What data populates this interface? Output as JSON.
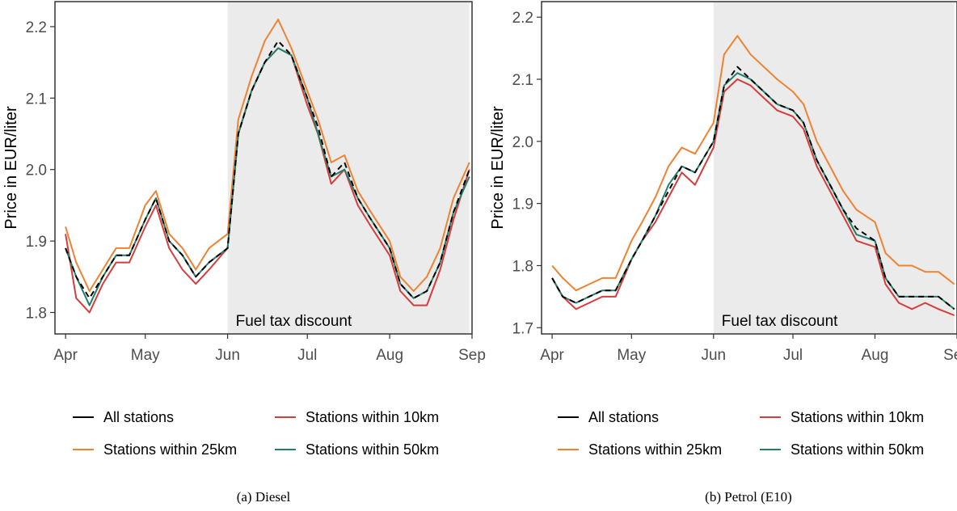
{
  "chart_data": [
    {
      "type": "line",
      "caption": "(a) Diesel",
      "title": "",
      "xlabel": "",
      "ylabel": "Price in EUR/liter",
      "x_ticks": [
        "Apr",
        "May",
        "Jun",
        "Jul",
        "Aug",
        "Sep"
      ],
      "x_tick_days": [
        0,
        30,
        61,
        91,
        122,
        153
      ],
      "xlim": [
        -4,
        153
      ],
      "ylim": [
        1.77,
        2.235
      ],
      "y_ticks": [
        1.8,
        1.9,
        2.0,
        2.1,
        2.2
      ],
      "y_tick_labels": [
        "1.8",
        "1.9",
        "2.0",
        "2.1",
        "2.2"
      ],
      "shaded_region": {
        "from_day": 61,
        "to_day": 152,
        "label": "Fuel tax discount",
        "color": "#ebebeb"
      },
      "legend": {
        "position": "bottom",
        "columns": 2
      },
      "x": [
        "2022-04-01",
        "2022-04-05",
        "2022-04-10",
        "2022-04-15",
        "2022-04-20",
        "2022-04-25",
        "2022-05-01",
        "2022-05-05",
        "2022-05-10",
        "2022-05-15",
        "2022-05-20",
        "2022-05-25",
        "2022-06-01",
        "2022-06-05",
        "2022-06-10",
        "2022-06-15",
        "2022-06-20",
        "2022-06-25",
        "2022-07-01",
        "2022-07-05",
        "2022-07-10",
        "2022-07-15",
        "2022-07-20",
        "2022-07-25",
        "2022-08-01",
        "2022-08-05",
        "2022-08-10",
        "2022-08-15",
        "2022-08-20",
        "2022-08-25",
        "2022-08-31"
      ],
      "series": [
        {
          "name": "All stations",
          "color": "#000000",
          "dash": true,
          "values": [
            1.89,
            1.85,
            1.82,
            1.85,
            1.88,
            1.88,
            1.93,
            1.96,
            1.9,
            1.88,
            1.85,
            1.87,
            1.89,
            2.05,
            2.11,
            2.15,
            2.18,
            2.16,
            2.1,
            2.06,
            1.99,
            2.01,
            1.96,
            1.93,
            1.89,
            1.84,
            1.82,
            1.83,
            1.87,
            1.94,
            2.0
          ]
        },
        {
          "name": "Stations within 10km",
          "color": "#d73b3b",
          "dash": false,
          "values": [
            1.91,
            1.82,
            1.8,
            1.84,
            1.87,
            1.87,
            1.92,
            1.95,
            1.89,
            1.86,
            1.84,
            1.86,
            1.89,
            2.05,
            2.11,
            2.15,
            2.17,
            2.16,
            2.09,
            2.05,
            1.98,
            2.0,
            1.95,
            1.92,
            1.88,
            1.83,
            1.81,
            1.81,
            1.86,
            1.93,
            2.0
          ]
        },
        {
          "name": "Stations within 25km",
          "color": "#ef8231",
          "dash": false,
          "values": [
            1.92,
            1.87,
            1.83,
            1.86,
            1.89,
            1.89,
            1.95,
            1.97,
            1.91,
            1.89,
            1.86,
            1.89,
            1.91,
            2.07,
            2.13,
            2.18,
            2.21,
            2.17,
            2.11,
            2.07,
            2.01,
            2.02,
            1.97,
            1.94,
            1.9,
            1.85,
            1.83,
            1.85,
            1.89,
            1.96,
            2.01
          ]
        },
        {
          "name": "Stations within 50km",
          "color": "#1f7f6b",
          "dash": false,
          "values": [
            1.89,
            1.85,
            1.81,
            1.85,
            1.88,
            1.88,
            1.93,
            1.96,
            1.9,
            1.88,
            1.85,
            1.87,
            1.89,
            2.05,
            2.11,
            2.15,
            2.17,
            2.16,
            2.1,
            2.05,
            1.99,
            2.0,
            1.96,
            1.93,
            1.89,
            1.84,
            1.82,
            1.83,
            1.87,
            1.94,
            1.99
          ]
        }
      ]
    },
    {
      "type": "line",
      "caption": "(b) Petrol (E10)",
      "title": "",
      "xlabel": "",
      "ylabel": "Price in EUR/liter",
      "x_ticks": [
        "Apr",
        "May",
        "Jun",
        "Jul",
        "Aug",
        "Sep"
      ],
      "x_tick_days": [
        0,
        30,
        61,
        91,
        122,
        153
      ],
      "xlim": [
        -4,
        153
      ],
      "ylim": [
        1.69,
        2.225
      ],
      "y_ticks": [
        1.7,
        1.8,
        1.9,
        2.0,
        2.1,
        2.2
      ],
      "y_tick_labels": [
        "1.7",
        "1.8",
        "1.9",
        "2.0",
        "2.1",
        "2.2"
      ],
      "shaded_region": {
        "from_day": 61,
        "to_day": 152,
        "label": "Fuel tax discount",
        "color": "#ebebeb"
      },
      "legend": {
        "position": "bottom",
        "columns": 2
      },
      "x": [
        "2022-04-01",
        "2022-04-05",
        "2022-04-10",
        "2022-04-15",
        "2022-04-20",
        "2022-04-25",
        "2022-05-01",
        "2022-05-05",
        "2022-05-10",
        "2022-05-15",
        "2022-05-20",
        "2022-05-25",
        "2022-06-01",
        "2022-06-05",
        "2022-06-10",
        "2022-06-15",
        "2022-06-20",
        "2022-06-25",
        "2022-07-01",
        "2022-07-05",
        "2022-07-10",
        "2022-07-15",
        "2022-07-20",
        "2022-07-25",
        "2022-08-01",
        "2022-08-05",
        "2022-08-10",
        "2022-08-15",
        "2022-08-20",
        "2022-08-25",
        "2022-08-31"
      ],
      "series": [
        {
          "name": "All stations",
          "color": "#000000",
          "dash": true,
          "values": [
            1.78,
            1.75,
            1.74,
            1.75,
            1.76,
            1.76,
            1.81,
            1.84,
            1.88,
            1.92,
            1.96,
            1.95,
            2.0,
            2.09,
            2.12,
            2.1,
            2.08,
            2.06,
            2.05,
            2.03,
            1.97,
            1.93,
            1.89,
            1.86,
            1.84,
            1.78,
            1.75,
            1.75,
            1.75,
            1.75,
            1.73
          ]
        },
        {
          "name": "Stations within 10km",
          "color": "#d73b3b",
          "dash": false,
          "values": [
            1.78,
            1.75,
            1.73,
            1.74,
            1.75,
            1.75,
            1.81,
            1.84,
            1.87,
            1.91,
            1.95,
            1.93,
            1.99,
            2.08,
            2.1,
            2.09,
            2.07,
            2.05,
            2.04,
            2.02,
            1.96,
            1.92,
            1.88,
            1.84,
            1.83,
            1.77,
            1.74,
            1.73,
            1.74,
            1.73,
            1.72
          ]
        },
        {
          "name": "Stations within 25km",
          "color": "#ef8231",
          "dash": false,
          "values": [
            1.8,
            1.78,
            1.76,
            1.77,
            1.78,
            1.78,
            1.84,
            1.87,
            1.91,
            1.96,
            1.99,
            1.98,
            2.03,
            2.14,
            2.17,
            2.14,
            2.12,
            2.1,
            2.08,
            2.06,
            2.0,
            1.96,
            1.92,
            1.89,
            1.87,
            1.82,
            1.8,
            1.8,
            1.79,
            1.79,
            1.77
          ]
        },
        {
          "name": "Stations within 50km",
          "color": "#1f7f6b",
          "dash": false,
          "values": [
            1.78,
            1.75,
            1.74,
            1.75,
            1.76,
            1.76,
            1.81,
            1.84,
            1.88,
            1.93,
            1.96,
            1.95,
            2.0,
            2.09,
            2.11,
            2.1,
            2.08,
            2.06,
            2.05,
            2.03,
            1.97,
            1.93,
            1.89,
            1.85,
            1.84,
            1.78,
            1.75,
            1.75,
            1.75,
            1.75,
            1.73
          ]
        }
      ]
    }
  ]
}
